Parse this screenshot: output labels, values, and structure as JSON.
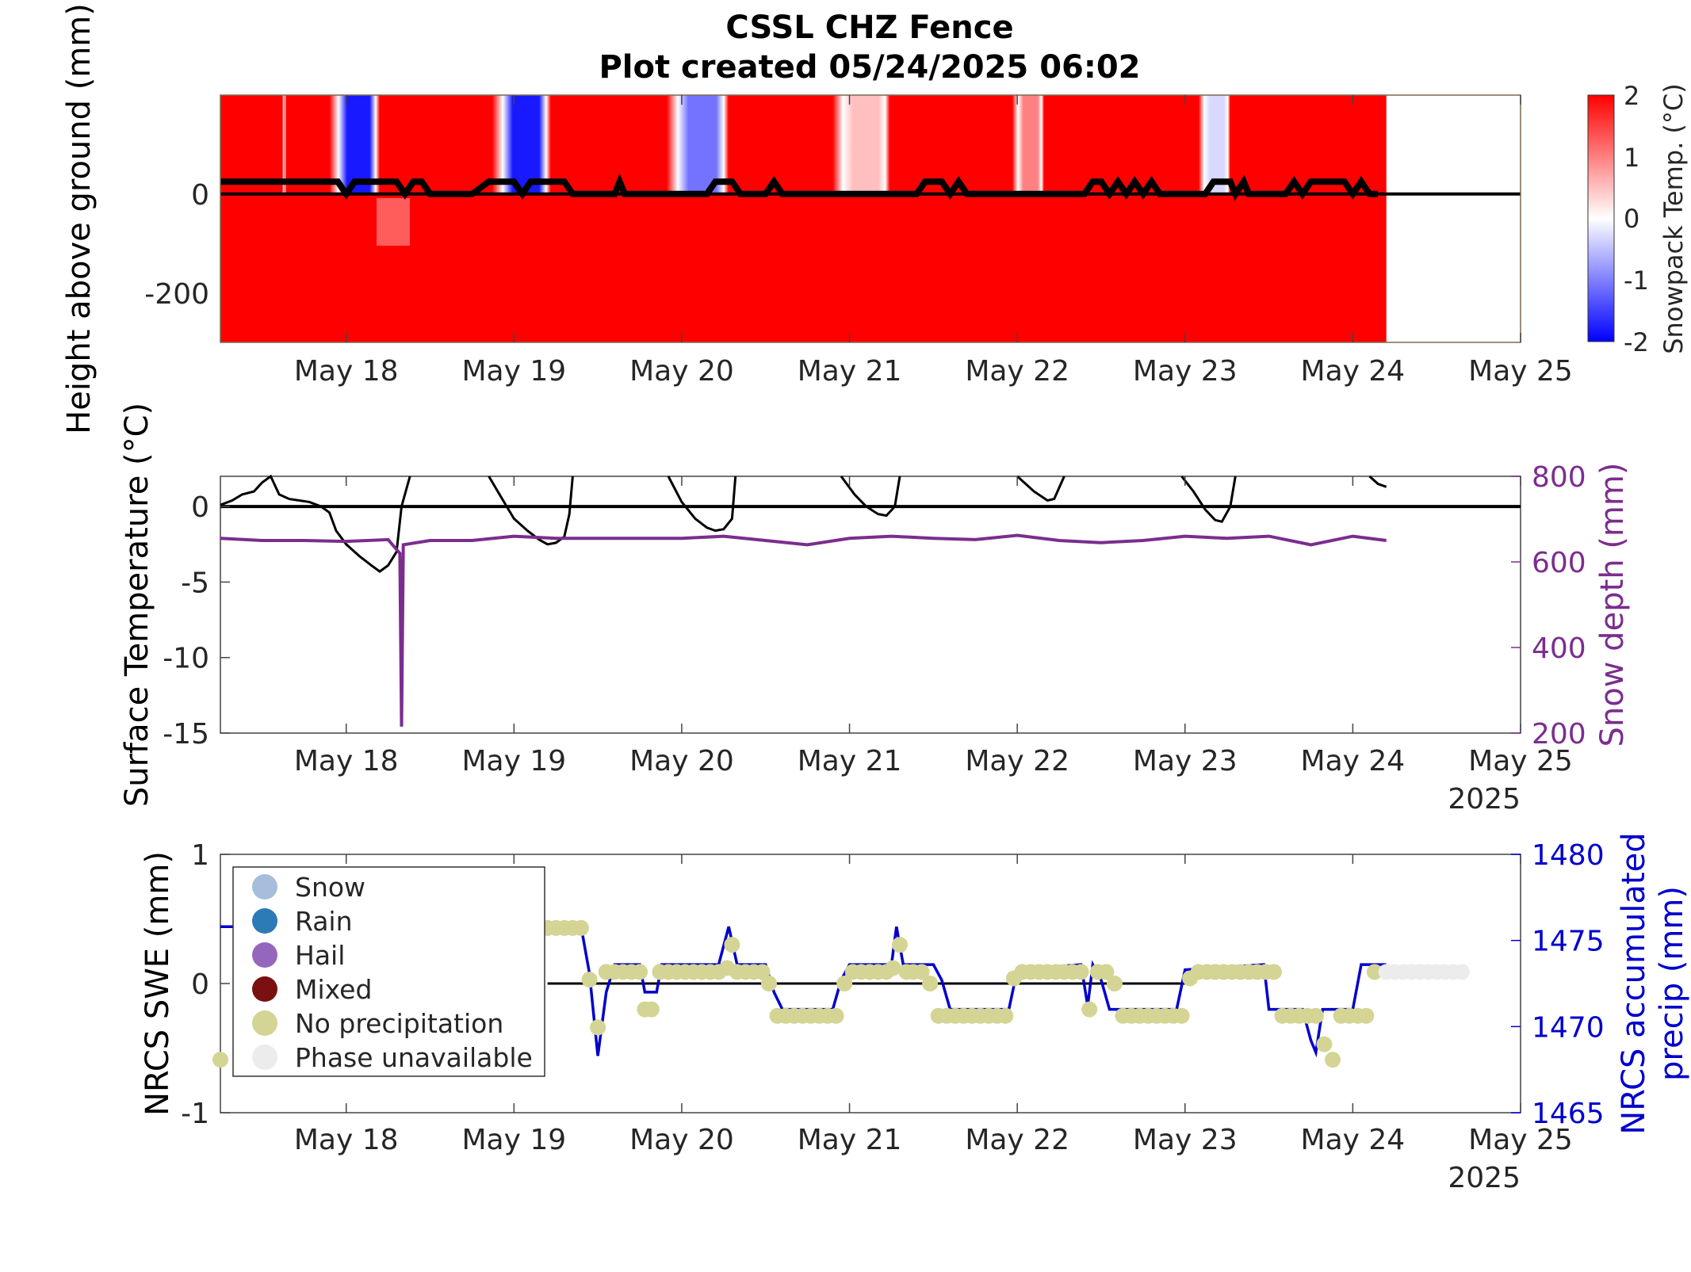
{
  "title_line1": "CSSL CHZ Fence",
  "title_line2": "Plot created 05/24/2025 06:02",
  "year_label": "2025",
  "colors": {
    "warm": "#ff0000",
    "cold": "#0000ff",
    "temp_line": "#000000",
    "snow_depth": "#7b2d8e",
    "precip": "#0000cc",
    "no_precip": "#d4d494",
    "phase_unavailable": "#ececec"
  },
  "chart_data": [
    {
      "type": "heatmap",
      "ylabel": "Height above ground (mm)",
      "xticks": [
        "May 18",
        "May 19",
        "May 20",
        "May 21",
        "May 22",
        "May 23",
        "May 24",
        "May 25"
      ],
      "xlim_days": [
        17.25,
        25
      ],
      "yticks": [
        "0",
        "-200"
      ],
      "ylim": [
        -300,
        200
      ],
      "data_end_day": 24.2,
      "colorbar": {
        "label": "Snowpack Temp. (°C)",
        "ticks": [
          "2",
          "1",
          "0",
          "-1",
          "-2"
        ],
        "range": [
          -2,
          2
        ]
      },
      "cold_bands": [
        {
          "start": 17.62,
          "end": 17.64,
          "min_temp": 0.9
        },
        {
          "start": 17.9,
          "end": 18.2,
          "min_temp": -1.8
        },
        {
          "start": 18.87,
          "end": 19.22,
          "min_temp": -1.8
        },
        {
          "start": 19.91,
          "end": 20.28,
          "min_temp": -1.1
        },
        {
          "start": 20.9,
          "end": 21.24,
          "min_temp": 0.5
        },
        {
          "start": 21.97,
          "end": 22.16,
          "min_temp": 1.0
        },
        {
          "start": 23.08,
          "end": 23.27,
          "min_temp": -0.3
        }
      ],
      "snow_surface_series": [
        [
          17.25,
          25
        ],
        [
          17.95,
          25
        ],
        [
          18.0,
          0
        ],
        [
          18.05,
          25
        ],
        [
          18.3,
          25
        ],
        [
          18.35,
          0
        ],
        [
          18.4,
          25
        ],
        [
          18.45,
          25
        ],
        [
          18.5,
          0
        ],
        [
          18.75,
          0
        ],
        [
          18.85,
          25
        ],
        [
          19.0,
          25
        ],
        [
          19.05,
          0
        ],
        [
          19.1,
          25
        ],
        [
          19.3,
          25
        ],
        [
          19.35,
          0
        ],
        [
          19.6,
          0
        ],
        [
          19.63,
          25
        ],
        [
          19.66,
          0
        ],
        [
          20.15,
          0
        ],
        [
          20.2,
          25
        ],
        [
          20.3,
          25
        ],
        [
          20.35,
          0
        ],
        [
          20.5,
          0
        ],
        [
          20.55,
          25
        ],
        [
          20.6,
          0
        ],
        [
          21.4,
          0
        ],
        [
          21.45,
          25
        ],
        [
          21.55,
          25
        ],
        [
          21.6,
          0
        ],
        [
          21.65,
          25
        ],
        [
          21.7,
          0
        ],
        [
          22.4,
          0
        ],
        [
          22.45,
          25
        ],
        [
          22.5,
          25
        ],
        [
          22.55,
          0
        ],
        [
          22.6,
          25
        ],
        [
          22.65,
          0
        ],
        [
          22.7,
          25
        ],
        [
          22.75,
          0
        ],
        [
          22.8,
          25
        ],
        [
          22.85,
          0
        ],
        [
          23.12,
          0
        ],
        [
          23.17,
          25
        ],
        [
          23.27,
          25
        ],
        [
          23.3,
          0
        ],
        [
          23.35,
          25
        ],
        [
          23.38,
          0
        ],
        [
          23.6,
          0
        ],
        [
          23.65,
          25
        ],
        [
          23.7,
          0
        ],
        [
          23.75,
          25
        ],
        [
          23.95,
          25
        ],
        [
          24.0,
          0
        ],
        [
          24.05,
          25
        ],
        [
          24.1,
          0
        ],
        [
          24.15,
          0
        ]
      ]
    },
    {
      "type": "line",
      "ylabel": "Surface Temperature (°C)",
      "y2label": "Snow depth (mm)",
      "xticks": [
        "May 18",
        "May 19",
        "May 20",
        "May 21",
        "May 22",
        "May 23",
        "May 24",
        "May 25"
      ],
      "yticks": [
        "0",
        "-5",
        "-10",
        "-15"
      ],
      "ylim": [
        -15,
        2
      ],
      "y2ticks": [
        "800",
        "600",
        "400",
        "200"
      ],
      "y2lim": [
        200,
        800
      ],
      "series": [
        {
          "axis": "left",
          "x": [
            17.25,
            17.32,
            17.38,
            17.45,
            17.5,
            17.55,
            17.6,
            17.66,
            17.72,
            17.78,
            17.85,
            17.9,
            17.94,
            18.0,
            18.08,
            18.15,
            18.2,
            18.25,
            18.3,
            18.33,
            18.38
          ],
          "y": [
            0.1,
            0.4,
            0.8,
            1.0,
            1.6,
            2.0,
            0.8,
            0.5,
            0.4,
            0.3,
            0.0,
            -0.4,
            -1.6,
            -2.5,
            -3.3,
            -3.9,
            -4.3,
            -3.9,
            -3.0,
            0.0,
            2.0
          ]
        },
        {
          "axis": "left",
          "x": [
            18.85,
            18.93,
            19.0,
            19.08,
            19.15,
            19.2,
            19.25,
            19.3,
            19.33,
            19.35
          ],
          "y": [
            2.0,
            0.5,
            -0.8,
            -1.6,
            -2.2,
            -2.5,
            -2.4,
            -2.0,
            -0.5,
            2.0
          ]
        },
        {
          "axis": "left",
          "x": [
            19.92,
            20.0,
            20.08,
            20.15,
            20.2,
            20.25,
            20.3,
            20.32
          ],
          "y": [
            2.0,
            0.3,
            -0.8,
            -1.4,
            -1.6,
            -1.5,
            -0.8,
            2.0
          ]
        },
        {
          "axis": "left",
          "x": [
            20.95,
            21.03,
            21.1,
            21.17,
            21.22,
            21.27,
            21.3
          ],
          "y": [
            2.0,
            0.8,
            0.0,
            -0.5,
            -0.6,
            0.0,
            2.0
          ]
        },
        {
          "axis": "left",
          "x": [
            22.0,
            22.1,
            22.18,
            22.22,
            22.28
          ],
          "y": [
            2.0,
            1.0,
            0.4,
            0.5,
            2.0
          ]
        },
        {
          "axis": "left",
          "x": [
            22.98,
            23.05,
            23.12,
            23.18,
            23.22,
            23.27,
            23.3
          ],
          "y": [
            2.0,
            1.0,
            -0.2,
            -0.9,
            -1.0,
            0.0,
            2.0
          ]
        },
        {
          "axis": "left",
          "x": [
            24.1,
            24.15,
            24.2
          ],
          "y": [
            2.0,
            1.5,
            1.3
          ]
        },
        {
          "axis": "right",
          "x": [
            17.25,
            17.5,
            17.75,
            18.0,
            18.25,
            18.32,
            18.33,
            18.34,
            18.5,
            18.75,
            19.0,
            19.25,
            19.5,
            19.75,
            20.0,
            20.25,
            20.5,
            20.75,
            21.0,
            21.25,
            21.5,
            21.75,
            22.0,
            22.25,
            22.5,
            22.75,
            23.0,
            23.25,
            23.5,
            23.75,
            24.0,
            24.2
          ],
          "y": [
            655,
            650,
            650,
            648,
            652,
            620,
            215,
            640,
            650,
            650,
            660,
            655,
            655,
            655,
            655,
            660,
            650,
            640,
            655,
            660,
            655,
            652,
            662,
            650,
            645,
            650,
            660,
            655,
            660,
            640,
            660,
            650
          ]
        }
      ]
    },
    {
      "type": "scatter",
      "ylabel": "NRCS SWE (mm)",
      "y2label_line1": "NRCS accumulated",
      "y2label_line2": "precip (mm)",
      "xticks": [
        "May 18",
        "May 19",
        "May 20",
        "May 21",
        "May 22",
        "May 23",
        "May 24",
        "May 25"
      ],
      "yticks": [
        "1",
        "0",
        "-1"
      ],
      "ylim": [
        -1,
        1
      ],
      "y2ticks": [
        "1480",
        "1475",
        "1470",
        "1465"
      ],
      "y2lim": [
        1465,
        1480
      ],
      "swe_zero_line": {
        "start": 19.2,
        "end": 23.0,
        "value": 0
      },
      "legend": {
        "position": "top-left",
        "entries": [
          {
            "label": "Snow",
            "color": "#a6bddb"
          },
          {
            "label": "Rain",
            "color": "#2c7bb6"
          },
          {
            "label": "Hail",
            "color": "#9467bd"
          },
          {
            "label": "Mixed",
            "color": "#7b1010"
          },
          {
            "label": "No precipitation",
            "color": "#d4d494"
          },
          {
            "label": "Phase unavailable",
            "color": "#ececec"
          }
        ]
      },
      "precip_series": {
        "x": [
          17.25,
          19.4,
          19.45,
          19.5,
          19.55,
          19.6,
          19.75,
          19.78,
          19.85,
          19.88,
          20.22,
          20.28,
          20.33,
          20.5,
          20.55,
          20.6,
          20.9,
          20.95,
          21.0,
          21.25,
          21.28,
          21.32,
          21.35,
          21.5,
          21.55,
          21.6,
          21.95,
          22.0,
          22.38,
          22.42,
          22.45,
          22.5,
          22.55,
          22.6,
          22.95,
          23.0,
          23.47,
          23.5,
          23.55,
          23.7,
          23.75,
          23.78,
          23.82,
          23.85,
          24.0,
          24.05,
          24.2
        ],
        "y": [
          1475.8,
          1475.8,
          1473.1,
          1468.3,
          1472.0,
          1473.6,
          1473.6,
          1472.0,
          1472.0,
          1473.6,
          1473.6,
          1475.8,
          1473.6,
          1473.6,
          1472.0,
          1471.0,
          1471.0,
          1472.7,
          1473.6,
          1473.6,
          1475.8,
          1473.6,
          1473.6,
          1473.6,
          1472.7,
          1471.0,
          1471.0,
          1473.3,
          1473.6,
          1471.2,
          1473.6,
          1472.7,
          1471.0,
          1471.0,
          1471.0,
          1473.3,
          1473.6,
          1471.0,
          1471.0,
          1471.0,
          1469.2,
          1468.5,
          1471.0,
          1471.0,
          1471.0,
          1473.6,
          1473.6
        ]
      },
      "no_precip_points": {
        "x": [
          17.25,
          19.15,
          19.2,
          19.25,
          19.3,
          19.35,
          19.4,
          19.45,
          19.5,
          19.55,
          19.6,
          19.65,
          19.7,
          19.75,
          19.78,
          19.82,
          19.87,
          19.92,
          19.97,
          20.02,
          20.07,
          20.12,
          20.17,
          20.22,
          20.27,
          20.3,
          20.33,
          20.38,
          20.43,
          20.48,
          20.52,
          20.57,
          20.62,
          20.67,
          20.72,
          20.77,
          20.82,
          20.87,
          20.92,
          20.97,
          21.02,
          21.07,
          21.12,
          21.17,
          21.22,
          21.26,
          21.3,
          21.34,
          21.38,
          21.43,
          21.48,
          21.53,
          21.58,
          21.63,
          21.68,
          21.73,
          21.78,
          21.83,
          21.88,
          21.93,
          21.98,
          22.03,
          22.08,
          22.13,
          22.18,
          22.23,
          22.28,
          22.33,
          22.38,
          22.43,
          22.48,
          22.53,
          22.58,
          22.63,
          22.68,
          22.73,
          22.78,
          22.83,
          22.88,
          22.93,
          22.98,
          23.03,
          23.08,
          23.13,
          23.18,
          23.23,
          23.28,
          23.33,
          23.38,
          23.43,
          23.48,
          23.53,
          23.58,
          23.63,
          23.68,
          23.73,
          23.78,
          23.83,
          23.88,
          23.93,
          23.98,
          24.03,
          24.08,
          24.13
        ],
        "y": [
          -0.59,
          0.43,
          0.43,
          0.43,
          0.43,
          0.43,
          0.43,
          0.03,
          -0.34,
          0.09,
          0.09,
          0.09,
          0.09,
          0.09,
          -0.2,
          -0.2,
          0.09,
          0.09,
          0.09,
          0.09,
          0.09,
          0.09,
          0.09,
          0.09,
          0.12,
          0.3,
          0.09,
          0.09,
          0.09,
          0.09,
          0.0,
          -0.25,
          -0.25,
          -0.25,
          -0.25,
          -0.25,
          -0.25,
          -0.25,
          -0.25,
          0.0,
          0.09,
          0.09,
          0.09,
          0.09,
          0.09,
          0.12,
          0.3,
          0.09,
          0.09,
          0.09,
          0.0,
          -0.25,
          -0.25,
          -0.25,
          -0.25,
          -0.25,
          -0.25,
          -0.25,
          -0.25,
          -0.25,
          0.04,
          0.09,
          0.09,
          0.09,
          0.09,
          0.09,
          0.09,
          0.09,
          0.09,
          -0.2,
          0.09,
          0.09,
          0.0,
          -0.25,
          -0.25,
          -0.25,
          -0.25,
          -0.25,
          -0.25,
          -0.25,
          -0.25,
          0.04,
          0.09,
          0.09,
          0.09,
          0.09,
          0.09,
          0.09,
          0.09,
          0.09,
          0.09,
          0.09,
          -0.25,
          -0.25,
          -0.25,
          -0.25,
          -0.25,
          -0.47,
          -0.59,
          -0.25,
          -0.25,
          -0.25,
          -0.25,
          0.09
        ]
      },
      "phase_unavailable_points": {
        "x": [
          24.2,
          24.25,
          24.3,
          24.35,
          24.4,
          24.45,
          24.5,
          24.55,
          24.6,
          24.65
        ],
        "y": [
          0.09,
          0.09,
          0.09,
          0.09,
          0.09,
          0.09,
          0.09,
          0.09,
          0.09,
          0.09
        ]
      }
    }
  ]
}
